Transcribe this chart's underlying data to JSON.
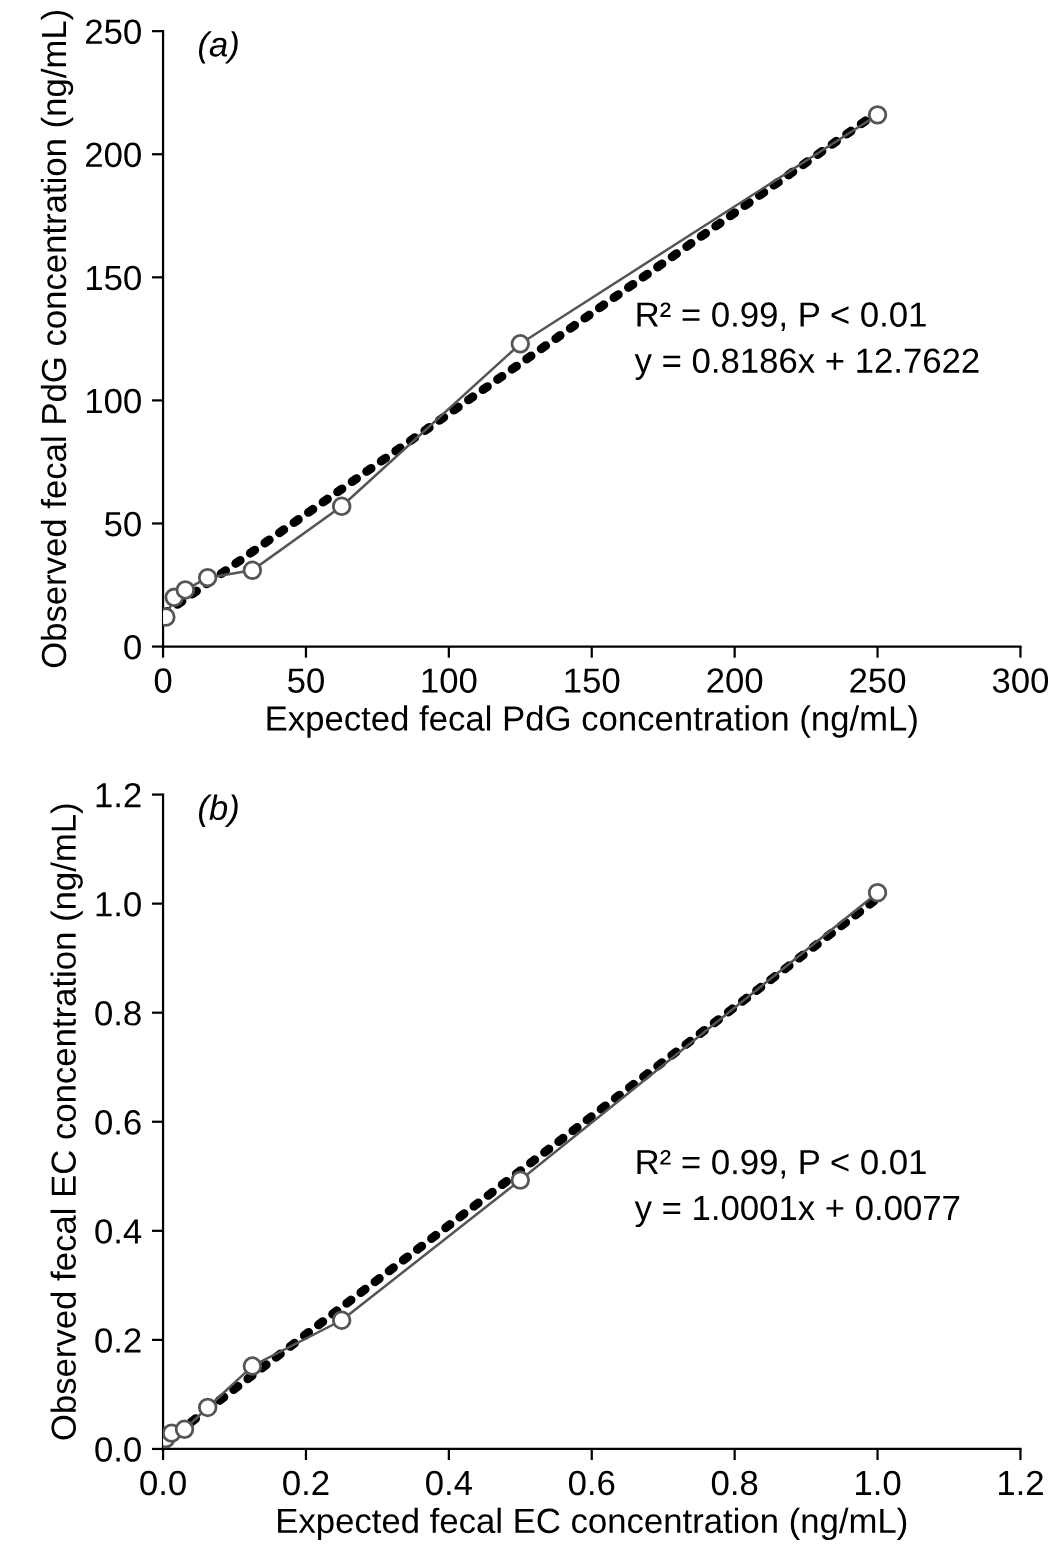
{
  "chart_data": [
    {
      "type": "line",
      "title": "(a)",
      "xlabel": "Expected fecal PdG concentration (ng/mL)",
      "ylabel": "Observed fecal PdG concentration (ng/mL)",
      "xlim": [
        0,
        300
      ],
      "xticks": [
        0,
        50,
        100,
        150,
        200,
        250,
        300
      ],
      "ylim": [
        0,
        250
      ],
      "yticks": [
        0,
        50,
        100,
        150,
        200,
        250
      ],
      "grid": false,
      "legend": false,
      "annotations": [
        "R² = 0.99, P < 0.01",
        "y = 0.8186x + 12.7622"
      ],
      "series": [
        {
          "color": "#555555",
          "marker": "circle",
          "line_style": "solid",
          "x": [
            0.98,
            3.9,
            7.8,
            15.6,
            31.25,
            62.5,
            125,
            250
          ],
          "values": [
            12,
            20,
            23,
            28,
            31,
            57,
            123,
            216
          ]
        },
        {
          "color": "#000000",
          "marker": "none",
          "line_style": "dotted",
          "x": [
            0,
            250
          ],
          "values": [
            13,
            217
          ]
        }
      ]
    },
    {
      "type": "line",
      "title": "(b)",
      "xlabel": "Expected fecal EC concentration (ng/mL)",
      "ylabel": "Observed fecal EC concentration (ng/mL)",
      "xlim": [
        0,
        1.2
      ],
      "xticks": [
        {
          "value": 0,
          "label": "0.0"
        },
        0.2,
        0.4,
        0.6,
        0.8,
        {
          "value": 1,
          "label": "1.0"
        },
        1.2
      ],
      "ylim": [
        0,
        1.2
      ],
      "yticks": [
        {
          "value": 0,
          "label": "0.0"
        },
        0.2,
        0.4,
        0.6,
        0.8,
        {
          "value": 1,
          "label": "1.0"
        },
        1.2
      ],
      "grid": false,
      "legend": false,
      "annotations": [
        "R² = 0.99, P < 0.01",
        "y = 1.0001x + 0.0077"
      ],
      "series": [
        {
          "color": "#555555",
          "marker": "circle",
          "line_style": "solid",
          "x": [
            0.004,
            0.012,
            0.03,
            0.0625,
            0.125,
            0.25,
            0.5,
            1.0
          ],
          "values": [
            0.019,
            0.029,
            0.036,
            0.076,
            0.152,
            0.236,
            0.493,
            1.02
          ]
        },
        {
          "color": "#000000",
          "marker": "none",
          "line_style": "dotted",
          "x": [
            0,
            1.0
          ],
          "values": [
            0.01,
            1.01
          ]
        }
      ]
    }
  ]
}
